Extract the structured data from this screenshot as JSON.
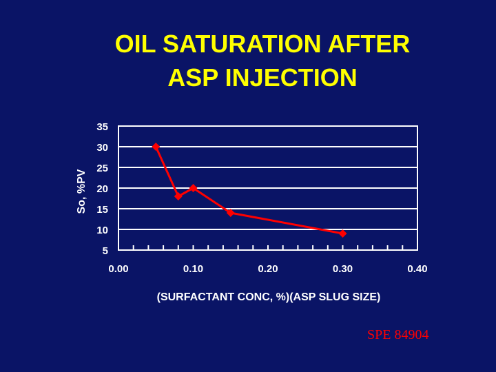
{
  "slide": {
    "title_line1": "OIL SATURATION AFTER",
    "title_line2": "ASP INJECTION",
    "source": "SPE 84904"
  },
  "colors": {
    "background": "#0a1466",
    "title": "#ffff00",
    "series": "#ff0000",
    "axis_text": "#ffffff",
    "grid": "#ffffff"
  },
  "chart_data": {
    "type": "line",
    "title": "",
    "xlabel": "(SURFACTANT CONC, %)(ASP SLUG SIZE)",
    "ylabel": "So, %PV",
    "xlim": [
      0.0,
      0.4
    ],
    "ylim": [
      5,
      35
    ],
    "x_ticks": [
      "0.00",
      "0.10",
      "0.20",
      "0.30",
      "0.40"
    ],
    "y_ticks": [
      "5",
      "10",
      "15",
      "20",
      "25",
      "30",
      "35"
    ],
    "x_minor_step": 0.02,
    "grid": "horizontal",
    "legend": "none",
    "series": [
      {
        "x": [
          0.05,
          0.08,
          0.1,
          0.15,
          0.3
        ],
        "y": [
          30,
          18,
          20,
          14,
          9
        ],
        "color": "#ff0000",
        "marker": "diamond"
      }
    ]
  }
}
